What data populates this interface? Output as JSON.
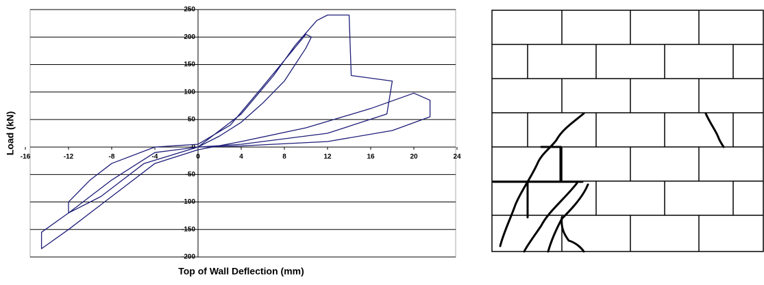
{
  "chart_data": {
    "type": "line",
    "x_label": "Top of Wall Deflection (mm)",
    "y_label": "Load (kN)",
    "color": "#1c1c78",
    "xlim": [
      -16,
      24
    ],
    "xticks": [
      -16,
      -12,
      -8,
      -4,
      0,
      4,
      8,
      12,
      16,
      20,
      24
    ],
    "ylim": [
      -200,
      250
    ],
    "yticks": [
      -200,
      -150,
      -100,
      -50,
      0,
      50,
      100,
      150,
      200,
      250
    ],
    "grid": true,
    "x": [
      0,
      2,
      4,
      6,
      8,
      9,
      10,
      10.5,
      10,
      6,
      3,
      0,
      -4,
      -8,
      -10,
      -12,
      -12,
      -9,
      -5,
      0,
      4,
      7,
      9,
      11,
      12,
      14,
      14.2,
      18,
      17.5,
      12,
      4,
      0,
      -4,
      -8,
      -12,
      -14.5,
      -14.5,
      -12,
      -8,
      -4,
      0,
      4,
      10,
      16,
      20,
      21.5,
      21.5,
      18,
      12,
      4,
      0
    ],
    "values": [
      0,
      20,
      45,
      80,
      120,
      150,
      180,
      200,
      205,
      110,
      40,
      5,
      0,
      -30,
      -60,
      -100,
      -120,
      -90,
      -30,
      0,
      60,
      130,
      185,
      230,
      240,
      240,
      130,
      120,
      60,
      25,
      5,
      0,
      -10,
      -60,
      -120,
      -155,
      -185,
      -150,
      -90,
      -30,
      -5,
      10,
      35,
      70,
      98,
      85,
      55,
      30,
      10,
      2,
      0
    ]
  }
}
